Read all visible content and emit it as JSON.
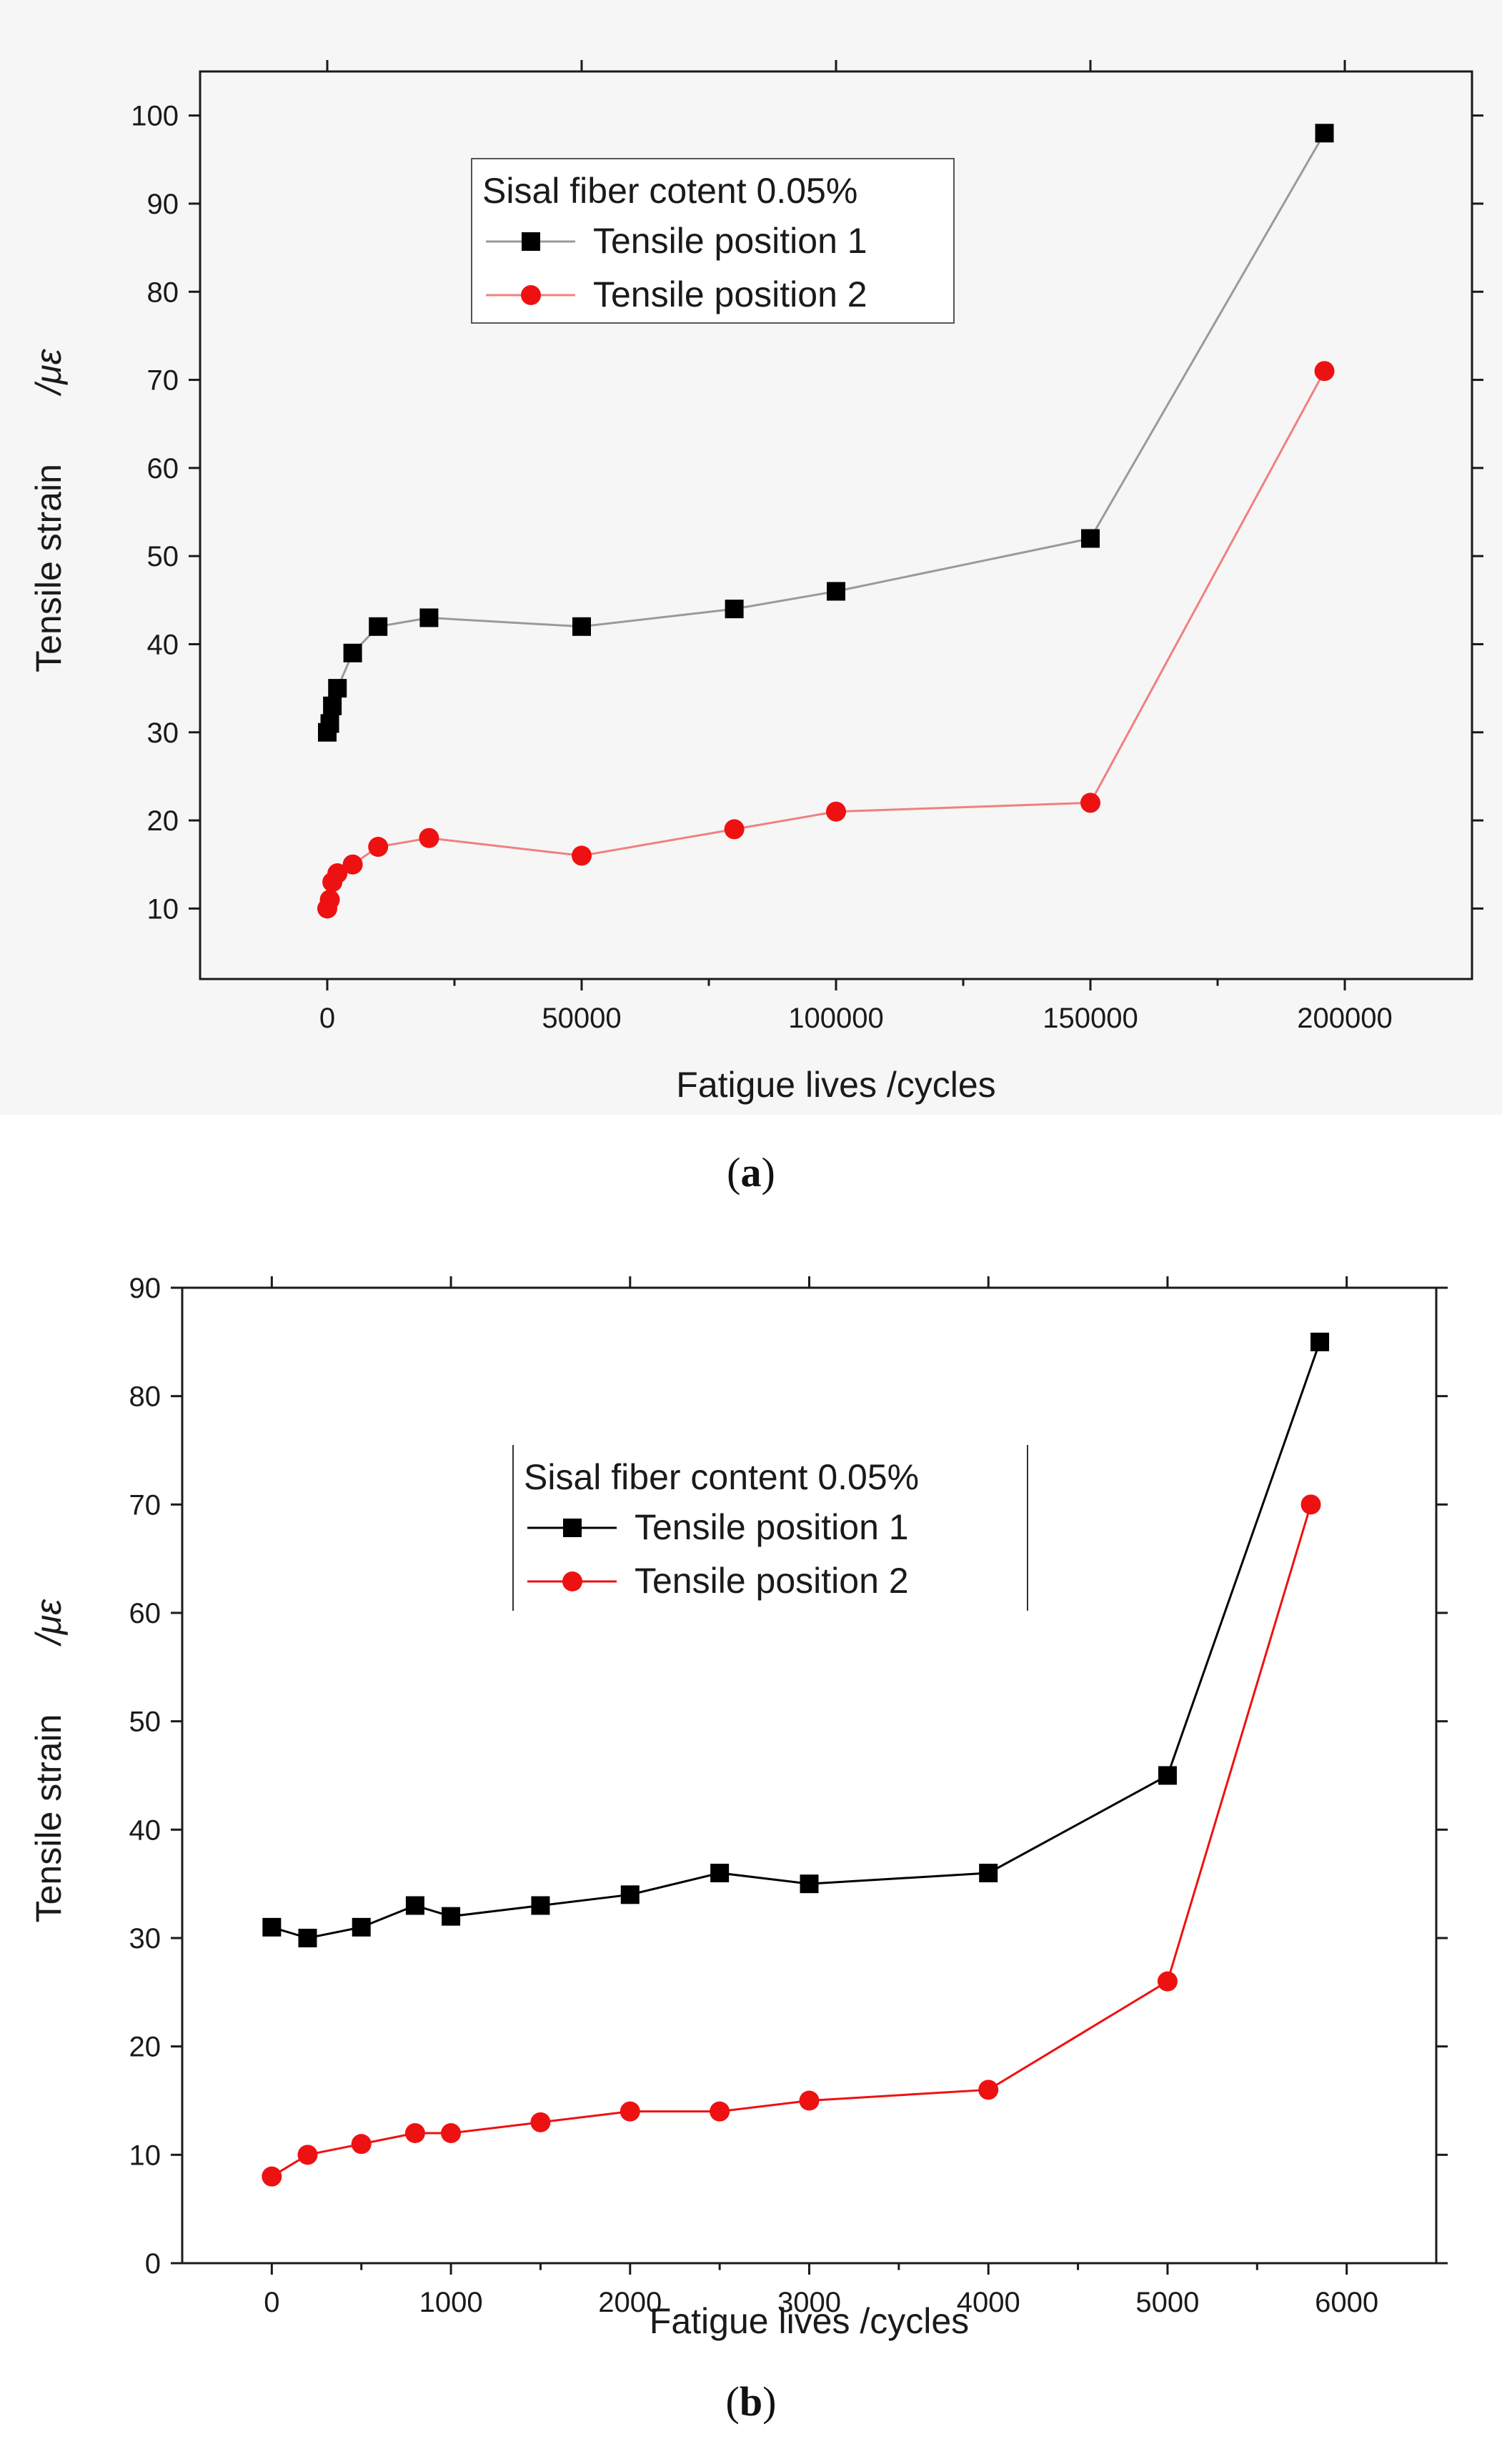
{
  "chart_data": [
    {
      "type": "line",
      "caption_letter": "a",
      "xlabel": "Fatigue lives   /cycles",
      "ylabel_text": "Tensile strain",
      "ylabel_unit": "/με",
      "xlim": [
        -25000,
        225000
      ],
      "ylim": [
        2,
        105
      ],
      "xticks": [
        0,
        50000,
        100000,
        150000,
        200000
      ],
      "xtick_labels": [
        "0",
        "50000",
        "100000",
        "150000",
        "200000"
      ],
      "yticks": [
        10,
        20,
        30,
        40,
        50,
        60,
        70,
        80,
        90,
        100
      ],
      "ytick_labels": [
        "10",
        "20",
        "30",
        "40",
        "50",
        "60",
        "70",
        "80",
        "90",
        "100"
      ],
      "legend_title": "Sisal fiber cotent 0.05%",
      "legend_position": "top-center",
      "series": [
        {
          "name": "Tensile position 1",
          "color": "#000000",
          "line_color": "#9a9a9a",
          "marker": "square",
          "x": [
            0,
            500,
            1000,
            2000,
            5000,
            10000,
            20000,
            50000,
            80000,
            100000,
            150000,
            196000
          ],
          "y": [
            30,
            31,
            33,
            35,
            39,
            42,
            43,
            42,
            44,
            46,
            52,
            98
          ]
        },
        {
          "name": "Tensile position 2",
          "color": "#ee1111",
          "line_color": "#f08080",
          "marker": "circle",
          "x": [
            0,
            500,
            1000,
            2000,
            5000,
            10000,
            20000,
            50000,
            80000,
            100000,
            150000,
            196000
          ],
          "y": [
            10,
            11,
            13,
            14,
            15,
            17,
            18,
            16,
            19,
            21,
            22,
            71
          ]
        }
      ]
    },
    {
      "type": "line",
      "caption_letter": "b",
      "xlabel": "Fatigue lives   /cycles",
      "ylabel_text": "Tensile strain",
      "ylabel_unit": "/με",
      "xlim": [
        -500,
        6500
      ],
      "ylim": [
        0,
        90
      ],
      "xticks": [
        0,
        1000,
        2000,
        3000,
        4000,
        5000,
        6000
      ],
      "xtick_labels": [
        "0",
        "1000",
        "2000",
        "3000",
        "4000",
        "5000",
        "6000"
      ],
      "yticks": [
        0,
        10,
        20,
        30,
        40,
        50,
        60,
        70,
        80,
        90
      ],
      "ytick_labels": [
        "0",
        "10",
        "20",
        "30",
        "40",
        "50",
        "60",
        "70",
        "80",
        "90"
      ],
      "legend_title": "Sisal fiber content 0.05%",
      "legend_position": "center",
      "series": [
        {
          "name": "Tensile position 1",
          "color": "#000000",
          "line_color": "#000000",
          "marker": "square",
          "x": [
            0,
            200,
            500,
            800,
            1000,
            1500,
            2000,
            2500,
            3000,
            4000,
            5000,
            5850
          ],
          "y": [
            31,
            30,
            31,
            33,
            32,
            33,
            34,
            36,
            35,
            36,
            45,
            85
          ]
        },
        {
          "name": "Tensile position 2",
          "color": "#ee1111",
          "line_color": "#ee1111",
          "marker": "circle",
          "x": [
            0,
            200,
            500,
            800,
            1000,
            1500,
            2000,
            2500,
            3000,
            4000,
            5000,
            5800
          ],
          "y": [
            8,
            10,
            11,
            12,
            12,
            13,
            14,
            14,
            15,
            16,
            26,
            70
          ]
        }
      ]
    }
  ]
}
